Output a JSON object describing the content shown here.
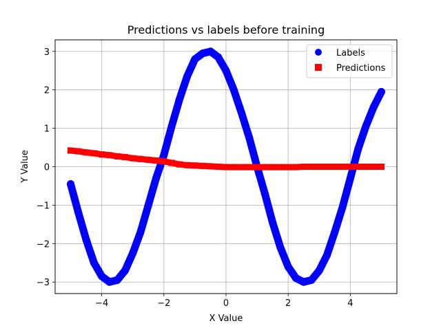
{
  "chart_data": {
    "type": "scatter",
    "title": "Predictions vs labels before training",
    "xlabel": "X Value",
    "ylabel": "Y Value",
    "xlim": [
      -5.5,
      5.5
    ],
    "ylim": [
      -3.3,
      3.3
    ],
    "xticks": [
      -4,
      -2,
      0,
      2,
      4
    ],
    "yticks": [
      -3,
      -2,
      -1,
      0,
      1,
      2,
      3
    ],
    "xtick_labels": [
      "−4",
      "−2",
      "0",
      "2",
      "4"
    ],
    "ytick_labels": [
      "−3",
      "−2",
      "−1",
      "0",
      "1",
      "2",
      "3"
    ],
    "grid": true,
    "legend_position": "top-right",
    "series": [
      {
        "name": "Labels",
        "marker": "circle",
        "color": "#0000ff",
        "x": [
          -5.0,
          -4.75,
          -4.5,
          -4.25,
          -4.0,
          -3.75,
          -3.5,
          -3.25,
          -3.0,
          -2.75,
          -2.5,
          -2.25,
          -2.0,
          -1.75,
          -1.5,
          -1.25,
          -1.0,
          -0.75,
          -0.5,
          -0.25,
          0.0,
          0.25,
          0.5,
          0.75,
          1.0,
          1.25,
          1.5,
          1.75,
          2.0,
          2.25,
          2.5,
          2.75,
          3.0,
          3.25,
          3.5,
          3.75,
          4.0,
          4.25,
          4.5,
          4.75,
          5.0
        ],
        "y": [
          -0.45,
          -1.2,
          -1.9,
          -2.5,
          -2.85,
          -3.0,
          -2.95,
          -2.7,
          -2.25,
          -1.7,
          -1.0,
          -0.3,
          0.3,
          1.05,
          1.75,
          2.35,
          2.8,
          2.95,
          3.0,
          2.85,
          2.5,
          2.0,
          1.4,
          0.75,
          0.0,
          -0.7,
          -1.45,
          -2.1,
          -2.6,
          -2.9,
          -3.0,
          -2.95,
          -2.7,
          -2.3,
          -1.7,
          -1.05,
          -0.3,
          0.45,
          1.05,
          1.55,
          1.95
        ]
      },
      {
        "name": "Predictions",
        "marker": "square",
        "color": "#ff0000",
        "x": [
          -5.0,
          -4.75,
          -4.5,
          -4.25,
          -4.0,
          -3.75,
          -3.5,
          -3.25,
          -3.0,
          -2.75,
          -2.5,
          -2.25,
          -2.0,
          -1.75,
          -1.5,
          -1.25,
          -1.0,
          -0.75,
          -0.5,
          -0.25,
          0.0,
          0.25,
          0.5,
          0.75,
          1.0,
          1.25,
          1.5,
          1.75,
          2.0,
          2.25,
          2.5,
          2.75,
          3.0,
          3.25,
          3.5,
          3.75,
          4.0,
          4.25,
          4.5,
          4.75,
          5.0
        ],
        "y": [
          0.42,
          0.4,
          0.37,
          0.35,
          0.32,
          0.3,
          0.27,
          0.25,
          0.22,
          0.2,
          0.18,
          0.16,
          0.14,
          0.1,
          0.06,
          0.04,
          0.03,
          0.02,
          0.01,
          0.0,
          -0.01,
          -0.01,
          -0.01,
          -0.01,
          -0.01,
          -0.01,
          -0.01,
          -0.01,
          -0.01,
          -0.01,
          0.0,
          0.0,
          0.0,
          0.0,
          0.0,
          0.0,
          0.0,
          0.0,
          0.0,
          0.0,
          0.0
        ]
      }
    ]
  }
}
